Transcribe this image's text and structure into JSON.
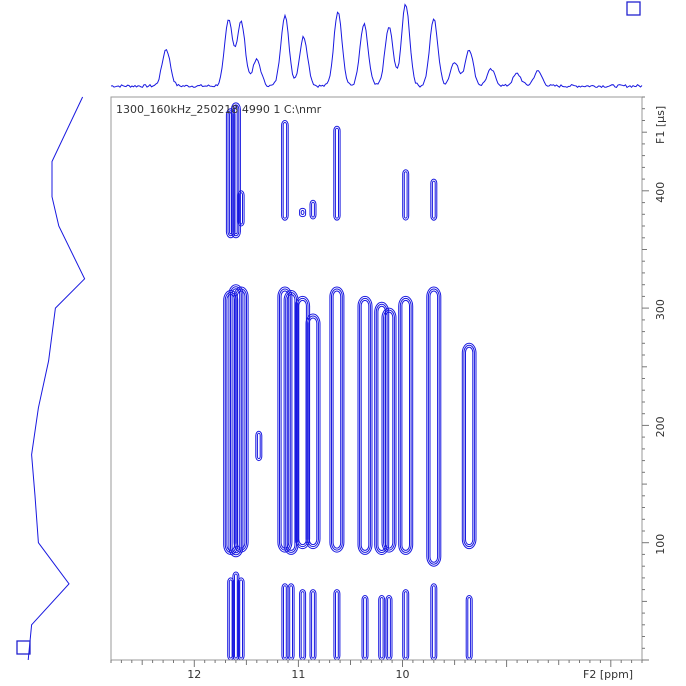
{
  "chart_data": {
    "type": "contour",
    "dataset_title": "1300_160kHz_250218  4990  1  C:\\nmr",
    "x_axis": {
      "label": "F2 [ppm]",
      "range": [
        12.8,
        7.7
      ],
      "reversed": true,
      "ticks": [
        12,
        11,
        10
      ]
    },
    "y_axis": {
      "label": "F1 [µs]",
      "range": [
        0,
        480
      ],
      "side": "right",
      "ticks": [
        100,
        200,
        300,
        400
      ]
    },
    "color": "#1818e0",
    "contour_columns": [
      {
        "ppm": 11.65,
        "bands": [
          [
            0,
            70
          ],
          [
            90,
            315
          ],
          [
            360,
            470
          ]
        ]
      },
      {
        "ppm": 11.6,
        "bands": [
          [
            0,
            75
          ],
          [
            88,
            320
          ],
          [
            360,
            475
          ]
        ]
      },
      {
        "ppm": 11.55,
        "bands": [
          [
            0,
            70
          ],
          [
            92,
            318
          ],
          [
            370,
            400
          ]
        ]
      },
      {
        "ppm": 11.38,
        "bands": [
          [
            170,
            195
          ]
        ]
      },
      {
        "ppm": 11.13,
        "bands": [
          [
            0,
            65
          ],
          [
            92,
            318
          ],
          [
            375,
            460
          ]
        ]
      },
      {
        "ppm": 11.07,
        "bands": [
          [
            0,
            65
          ],
          [
            90,
            315
          ]
        ]
      },
      {
        "ppm": 10.96,
        "bands": [
          [
            0,
            60
          ],
          [
            95,
            310
          ],
          [
            378,
            385
          ]
        ]
      },
      {
        "ppm": 10.86,
        "bands": [
          [
            0,
            60
          ],
          [
            95,
            295
          ],
          [
            376,
            392
          ]
        ]
      },
      {
        "ppm": 10.63,
        "bands": [
          [
            0,
            60
          ],
          [
            92,
            318
          ],
          [
            375,
            455
          ]
        ]
      },
      {
        "ppm": 10.36,
        "bands": [
          [
            0,
            55
          ],
          [
            90,
            310
          ]
        ]
      },
      {
        "ppm": 10.2,
        "bands": [
          [
            0,
            55
          ],
          [
            90,
            305
          ]
        ]
      },
      {
        "ppm": 10.13,
        "bands": [
          [
            0,
            55
          ],
          [
            92,
            300
          ]
        ]
      },
      {
        "ppm": 9.97,
        "bands": [
          [
            0,
            60
          ],
          [
            90,
            310
          ],
          [
            375,
            418
          ]
        ]
      },
      {
        "ppm": 9.7,
        "bands": [
          [
            0,
            65
          ],
          [
            80,
            318
          ],
          [
            375,
            410
          ]
        ]
      },
      {
        "ppm": 9.36,
        "bands": [
          [
            0,
            55
          ],
          [
            95,
            270
          ]
        ]
      }
    ],
    "f2_projection_peaks": [
      {
        "ppm": 12.27,
        "height": 0.45
      },
      {
        "ppm": 11.67,
        "height": 0.8
      },
      {
        "ppm": 11.55,
        "height": 0.78
      },
      {
        "ppm": 11.4,
        "height": 0.32
      },
      {
        "ppm": 11.13,
        "height": 0.86
      },
      {
        "ppm": 10.95,
        "height": 0.6
      },
      {
        "ppm": 10.62,
        "height": 0.92
      },
      {
        "ppm": 10.37,
        "height": 0.75
      },
      {
        "ppm": 10.13,
        "height": 0.72
      },
      {
        "ppm": 9.97,
        "height": 1.0
      },
      {
        "ppm": 9.7,
        "height": 0.82
      },
      {
        "ppm": 9.5,
        "height": 0.3
      },
      {
        "ppm": 9.36,
        "height": 0.45
      },
      {
        "ppm": 9.15,
        "height": 0.2
      },
      {
        "ppm": 8.9,
        "height": 0.15
      },
      {
        "ppm": 8.7,
        "height": 0.18
      }
    ],
    "f1_projection": {
      "f1": [
        0,
        30,
        65,
        100,
        140,
        175,
        215,
        255,
        300,
        325,
        370,
        395,
        425,
        480
      ],
      "intensity": [
        0.15,
        0.2,
        0.75,
        0.3,
        0.25,
        0.2,
        0.3,
        0.45,
        0.55,
        0.98,
        0.6,
        0.5,
        0.5,
        0.95
      ]
    }
  }
}
